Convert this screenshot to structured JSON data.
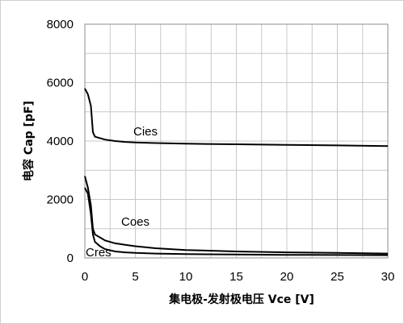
{
  "chart_data": {
    "type": "line",
    "xlabel": "集电极-发射极电压 Vce [V]",
    "ylabel": "电容 Cap [pF]",
    "xlim": [
      0,
      30
    ],
    "ylim": [
      0,
      8000
    ],
    "x_ticks": [
      0,
      5,
      10,
      15,
      20,
      25,
      30
    ],
    "y_ticks": [
      0,
      2000,
      4000,
      6000,
      8000
    ],
    "grid": true,
    "series": [
      {
        "name": "Cies",
        "x": [
          0,
          0.3,
          0.6,
          0.8,
          1,
          1.5,
          2,
          3,
          4,
          5,
          7,
          10,
          15,
          20,
          25,
          30
        ],
        "values": [
          5800,
          5600,
          5200,
          4300,
          4150,
          4100,
          4050,
          4000,
          3970,
          3950,
          3930,
          3910,
          3890,
          3870,
          3850,
          3830
        ]
      },
      {
        "name": "Coes",
        "x": [
          0,
          0.3,
          0.6,
          0.8,
          1,
          1.5,
          2,
          3,
          4,
          5,
          7,
          10,
          15,
          20,
          25,
          30
        ],
        "values": [
          2800,
          2400,
          1800,
          1000,
          800,
          700,
          600,
          500,
          450,
          400,
          330,
          270,
          220,
          190,
          170,
          150
        ]
      },
      {
        "name": "Cres",
        "x": [
          0,
          0.3,
          0.6,
          0.8,
          1,
          1.5,
          2,
          3,
          4,
          5,
          7,
          10,
          15,
          20,
          25,
          30
        ],
        "values": [
          2400,
          2200,
          1500,
          800,
          550,
          400,
          300,
          220,
          190,
          170,
          150,
          130,
          115,
          105,
          100,
          95
        ]
      }
    ]
  }
}
